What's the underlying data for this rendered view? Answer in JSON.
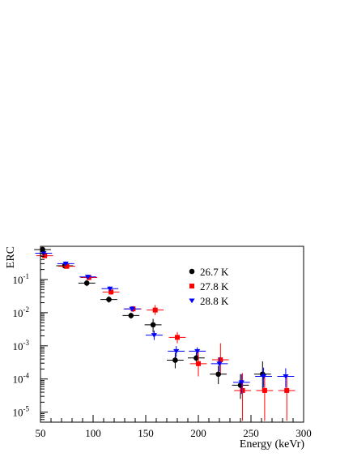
{
  "chart_data": {
    "type": "scatter",
    "title": "",
    "xlabel": "Energy (keVr)",
    "ylabel": "ERC",
    "xlim": [
      50,
      300
    ],
    "ylim": [
      5e-06,
      1.0
    ],
    "yscale": "log",
    "grid": false,
    "legend_position": "center-right",
    "x_ticks": [
      {
        "value": 50,
        "label": "50"
      },
      {
        "value": 100,
        "label": "100"
      },
      {
        "value": 150,
        "label": "150"
      },
      {
        "value": 200,
        "label": "200"
      },
      {
        "value": 250,
        "label": "250"
      },
      {
        "value": 300,
        "label": "300"
      }
    ],
    "y_ticks": [
      {
        "value": 1e-05,
        "base": "10",
        "exp": "-5"
      },
      {
        "value": 0.0001,
        "base": "10",
        "exp": "-4"
      },
      {
        "value": 0.001,
        "base": "10",
        "exp": "-3"
      },
      {
        "value": 0.01,
        "base": "10",
        "exp": "-2"
      },
      {
        "value": 0.1,
        "base": "10",
        "exp": "-1"
      }
    ],
    "series": [
      {
        "name": "26.7 K",
        "color": "#000000",
        "marker": "circle",
        "x_err": 8,
        "points": [
          {
            "x": 52,
            "y": 0.8,
            "lo": 0.72,
            "hi": 0.88
          },
          {
            "x": 73,
            "y": 0.26,
            "lo": 0.21,
            "hi": 0.31
          },
          {
            "x": 94,
            "y": 0.078,
            "lo": 0.063,
            "hi": 0.094
          },
          {
            "x": 115,
            "y": 0.025,
            "lo": 0.02,
            "hi": 0.031
          },
          {
            "x": 136,
            "y": 0.0082,
            "lo": 0.0066,
            "hi": 0.01
          },
          {
            "x": 157,
            "y": 0.0043,
            "lo": 0.0025,
            "hi": 0.0065
          },
          {
            "x": 178,
            "y": 0.00037,
            "lo": 0.00021,
            "hi": 0.00061
          },
          {
            "x": 198,
            "y": 0.00043,
            "lo": 0.00028,
            "hi": 0.00063
          },
          {
            "x": 219,
            "y": 0.00014,
            "lo": 7e-05,
            "hi": 0.00025
          },
          {
            "x": 240,
            "y": 6.5e-05,
            "lo": 2.5e-05,
            "hi": 0.00014
          },
          {
            "x": 261,
            "y": 0.00014,
            "lo": 4.5e-05,
            "hi": 0.00034
          }
        ]
      },
      {
        "name": "27.8 K",
        "color": "#ff0000",
        "marker": "square",
        "x_err": 8,
        "points": [
          {
            "x": 54,
            "y": 0.52,
            "lo": 0.46,
            "hi": 0.59
          },
          {
            "x": 75,
            "y": 0.25,
            "lo": 0.21,
            "hi": 0.3
          },
          {
            "x": 96,
            "y": 0.115,
            "lo": 0.095,
            "hi": 0.135
          },
          {
            "x": 117,
            "y": 0.042,
            "lo": 0.035,
            "hi": 0.05
          },
          {
            "x": 138,
            "y": 0.013,
            "lo": 0.0105,
            "hi": 0.0158
          },
          {
            "x": 159,
            "y": 0.012,
            "lo": 0.0085,
            "hi": 0.017
          },
          {
            "x": 180,
            "y": 0.0018,
            "lo": 0.0012,
            "hi": 0.0026
          },
          {
            "x": 200,
            "y": 0.00029,
            "lo": 0.00012,
            "hi": 0.00065
          },
          {
            "x": 221,
            "y": 0.00038,
            "lo": 0.00015,
            "hi": 0.0012
          },
          {
            "x": 242,
            "y": 4.5e-05,
            "lo": 5.5e-06,
            "hi": 0.00015
          },
          {
            "x": 263,
            "y": 4.5e-05,
            "lo": 5.5e-06,
            "hi": 0.00013
          },
          {
            "x": 284,
            "y": 4.5e-05,
            "lo": 5.5e-06,
            "hi": 0.00013
          }
        ]
      },
      {
        "name": "28.8 K",
        "color": "#0000ff",
        "marker": "triangle-down",
        "x_err": 8,
        "points": [
          {
            "x": 53,
            "y": 0.62,
            "lo": 0.56,
            "hi": 0.69
          },
          {
            "x": 74,
            "y": 0.3,
            "lo": 0.26,
            "hi": 0.35
          },
          {
            "x": 95,
            "y": 0.12,
            "lo": 0.1,
            "hi": 0.14
          },
          {
            "x": 116,
            "y": 0.053,
            "lo": 0.045,
            "hi": 0.062
          },
          {
            "x": 137,
            "y": 0.013,
            "lo": 0.0108,
            "hi": 0.0155
          },
          {
            "x": 158,
            "y": 0.0021,
            "lo": 0.0015,
            "hi": 0.0029
          },
          {
            "x": 179,
            "y": 0.00069,
            "lo": 0.00046,
            "hi": 0.00098
          },
          {
            "x": 199,
            "y": 0.00069,
            "lo": 0.0005,
            "hi": 0.0009
          },
          {
            "x": 220,
            "y": 0.00029,
            "lo": 0.00017,
            "hi": 0.00045
          },
          {
            "x": 241,
            "y": 7.9e-05,
            "lo": 3.5e-05,
            "hi": 0.00014
          },
          {
            "x": 262,
            "y": 0.00012,
            "lo": 5.5e-05,
            "hi": 0.00022
          },
          {
            "x": 283,
            "y": 0.00012,
            "lo": 5.5e-05,
            "hi": 0.00021
          }
        ]
      }
    ]
  }
}
